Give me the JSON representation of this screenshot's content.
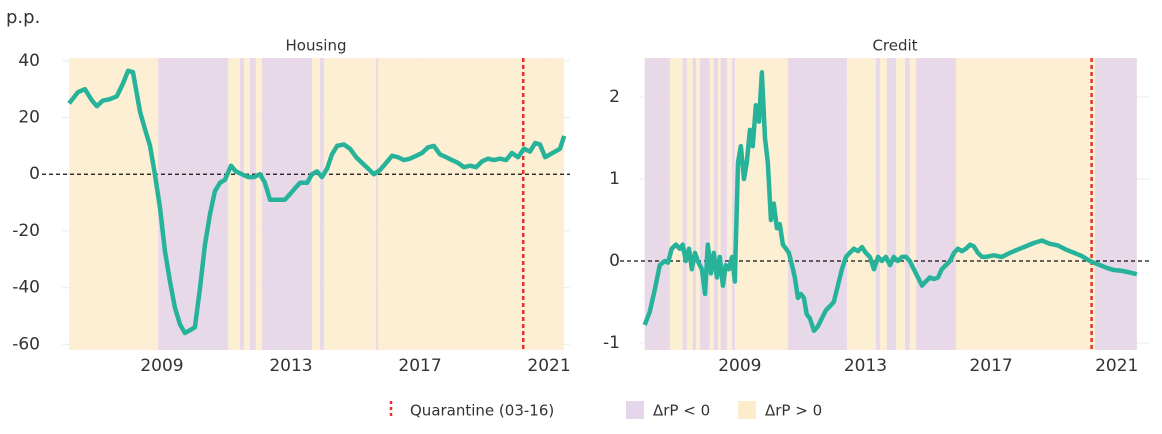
{
  "legend": {
    "quarantine": {
      "label": "Quarantine (03-16)",
      "x": 2020.2,
      "color": "#e8312f"
    },
    "negative": {
      "label": "ΔrP < 0",
      "color": "#e6d6eb"
    },
    "positive": {
      "label": "ΔrP > 0",
      "color": "#fdeccb"
    }
  },
  "chart_data": [
    {
      "type": "line",
      "title": "Housing",
      "ylabel": "p.p.",
      "color": "#26b39a",
      "xlim": [
        2005.9,
        2021.65
      ],
      "ylim": [
        -62,
        41
      ],
      "xticks": [
        2009,
        2013,
        2017,
        2021
      ],
      "yticks": [
        -60,
        -40,
        -20,
        0,
        20,
        40
      ],
      "hline": 0,
      "grid": true,
      "x": [
        2006.12,
        2006.4,
        2006.61,
        2006.83,
        2006.98,
        2007.17,
        2007.39,
        2007.6,
        2007.79,
        2007.95,
        2008.1,
        2008.32,
        2008.47,
        2008.63,
        2008.78,
        2008.94,
        2009.09,
        2009.25,
        2009.4,
        2009.56,
        2009.71,
        2009.87,
        2010.02,
        2010.18,
        2010.33,
        2010.49,
        2010.64,
        2010.8,
        2010.95,
        2011.14,
        2011.29,
        2011.48,
        2011.67,
        2011.85,
        2012.04,
        2012.19,
        2012.35,
        2012.6,
        2012.81,
        2012.97,
        2013.12,
        2013.28,
        2013.5,
        2013.65,
        2013.81,
        2013.96,
        2014.12,
        2014.27,
        2014.43,
        2014.64,
        2014.83,
        2015.02,
        2015.2,
        2015.39,
        2015.57,
        2015.76,
        2015.95,
        2016.13,
        2016.32,
        2016.5,
        2016.69,
        2016.88,
        2017.06,
        2017.25,
        2017.43,
        2017.62,
        2017.81,
        2017.99,
        2018.18,
        2018.36,
        2018.55,
        2018.74,
        2018.92,
        2019.11,
        2019.29,
        2019.48,
        2019.67,
        2019.85,
        2020.04,
        2020.22,
        2020.41,
        2020.57,
        2020.72,
        2020.88,
        2021.03,
        2021.19,
        2021.34,
        2021.47
      ],
      "values": [
        25,
        29,
        30,
        26,
        24,
        26,
        26.5,
        27.5,
        32,
        36.5,
        36,
        22,
        16,
        10,
        0,
        -12,
        -27,
        -38,
        -47,
        -53,
        -56,
        -55,
        -54,
        -40,
        -25,
        -14,
        -6,
        -3,
        -2,
        3,
        1,
        0,
        -1,
        -1,
        0,
        -3,
        -9,
        -9,
        -9,
        -7,
        -5,
        -3,
        -3,
        0,
        1,
        -1,
        2,
        7,
        10,
        10.5,
        9,
        6,
        4,
        2,
        0,
        1.5,
        4,
        6.5,
        6,
        5,
        5.5,
        6.5,
        7.5,
        9.5,
        10,
        7,
        6,
        5,
        4,
        2.5,
        3,
        2.5,
        4.5,
        5.5,
        5,
        5.5,
        5,
        7.5,
        6,
        9,
        8,
        11,
        10.5,
        6,
        7,
        8,
        9,
        13.5
      ],
      "negative_periods": [
        [
          2008.88,
          2011.05
        ],
        [
          2011.42,
          2011.54
        ],
        [
          2011.73,
          2011.91
        ],
        [
          2012.1,
          2013.65
        ],
        [
          2013.9,
          2014.02
        ],
        [
          2015.64,
          2015.7
        ]
      ]
    },
    {
      "type": "line",
      "title": "Credit",
      "color": "#26b39a",
      "xlim": [
        2005.82,
        2022.06
      ],
      "ylim": [
        -1.085,
        2.476
      ],
      "xticks": [
        2009,
        2013,
        2017,
        2021
      ],
      "yticks": [
        -1,
        0,
        1,
        2
      ],
      "hline": 0,
      "grid": true,
      "x": [
        2005.97,
        2006.13,
        2006.29,
        2006.45,
        2006.61,
        2006.71,
        2006.83,
        2006.96,
        2007.09,
        2007.18,
        2007.28,
        2007.38,
        2007.47,
        2007.57,
        2007.66,
        2007.79,
        2007.89,
        2007.98,
        2008.08,
        2008.17,
        2008.27,
        2008.36,
        2008.46,
        2008.55,
        2008.65,
        2008.75,
        2008.84,
        2008.94,
        2009.03,
        2009.13,
        2009.22,
        2009.32,
        2009.41,
        2009.51,
        2009.61,
        2009.7,
        2009.8,
        2009.89,
        2009.99,
        2010.08,
        2010.18,
        2010.27,
        2010.37,
        2010.47,
        2010.56,
        2010.66,
        2010.75,
        2010.85,
        2010.94,
        2011.04,
        2011.13,
        2011.23,
        2011.36,
        2011.48,
        2011.61,
        2011.74,
        2011.87,
        2011.99,
        2012.12,
        2012.25,
        2012.38,
        2012.5,
        2012.63,
        2012.76,
        2012.89,
        2013.01,
        2013.14,
        2013.27,
        2013.4,
        2013.52,
        2013.65,
        2013.78,
        2013.9,
        2014.03,
        2014.16,
        2014.29,
        2014.41,
        2014.54,
        2014.67,
        2014.8,
        2014.92,
        2015.05,
        2015.18,
        2015.31,
        2015.43,
        2015.56,
        2015.69,
        2015.82,
        2015.94,
        2016.07,
        2016.2,
        2016.33,
        2016.45,
        2016.58,
        2016.71,
        2016.83,
        2017.09,
        2017.34,
        2017.6,
        2017.85,
        2018.11,
        2018.36,
        2018.62,
        2018.87,
        2019.13,
        2019.38,
        2019.64,
        2019.89,
        2020.15,
        2020.4,
        2020.66,
        2020.91,
        2021.17,
        2021.42,
        2021.64
      ],
      "values": [
        -0.78,
        -0.62,
        -0.35,
        -0.05,
        0.0,
        -0.02,
        0.15,
        0.2,
        0.15,
        0.2,
        0.0,
        0.15,
        -0.1,
        0.1,
        0.0,
        -0.1,
        -0.4,
        0.2,
        -0.15,
        0.1,
        -0.2,
        0.05,
        -0.3,
        -0.05,
        -0.1,
        0.05,
        -0.25,
        1.2,
        1.4,
        1.0,
        1.2,
        1.6,
        1.4,
        1.9,
        1.7,
        2.3,
        1.5,
        1.2,
        0.5,
        0.7,
        0.4,
        0.45,
        0.2,
        0.15,
        0.1,
        -0.05,
        -0.2,
        -0.45,
        -0.4,
        -0.45,
        -0.65,
        -0.7,
        -0.85,
        -0.8,
        -0.7,
        -0.6,
        -0.55,
        -0.5,
        -0.3,
        -0.1,
        0.05,
        0.1,
        0.15,
        0.12,
        0.17,
        0.1,
        0.05,
        -0.1,
        0.05,
        0.0,
        0.05,
        -0.05,
        0.05,
        0.0,
        0.05,
        0.05,
        0.0,
        -0.1,
        -0.2,
        -0.3,
        -0.25,
        -0.2,
        -0.22,
        -0.2,
        -0.1,
        -0.05,
        0.0,
        0.1,
        0.15,
        0.12,
        0.15,
        0.2,
        0.18,
        0.1,
        0.05,
        0.05,
        0.07,
        0.05,
        0.1,
        0.14,
        0.18,
        0.22,
        0.25,
        0.21,
        0.19,
        0.14,
        0.1,
        0.06,
        0.0,
        -0.04,
        -0.08,
        -0.11,
        -0.12,
        -0.14,
        -0.16
      ],
      "negative_periods": [
        [
          2005.97,
          2006.77
        ],
        [
          2007.18,
          2007.31
        ],
        [
          2007.5,
          2007.6
        ],
        [
          2007.73,
          2008.04
        ],
        [
          2008.17,
          2008.3
        ],
        [
          2008.39,
          2008.59
        ],
        [
          2008.75,
          2008.84
        ],
        [
          2010.53,
          2012.41
        ],
        [
          2013.33,
          2013.46
        ],
        [
          2013.68,
          2013.97
        ],
        [
          2014.26,
          2014.41
        ],
        [
          2014.61,
          2015.88
        ],
        [
          2020.31,
          2021.64
        ]
      ]
    }
  ]
}
